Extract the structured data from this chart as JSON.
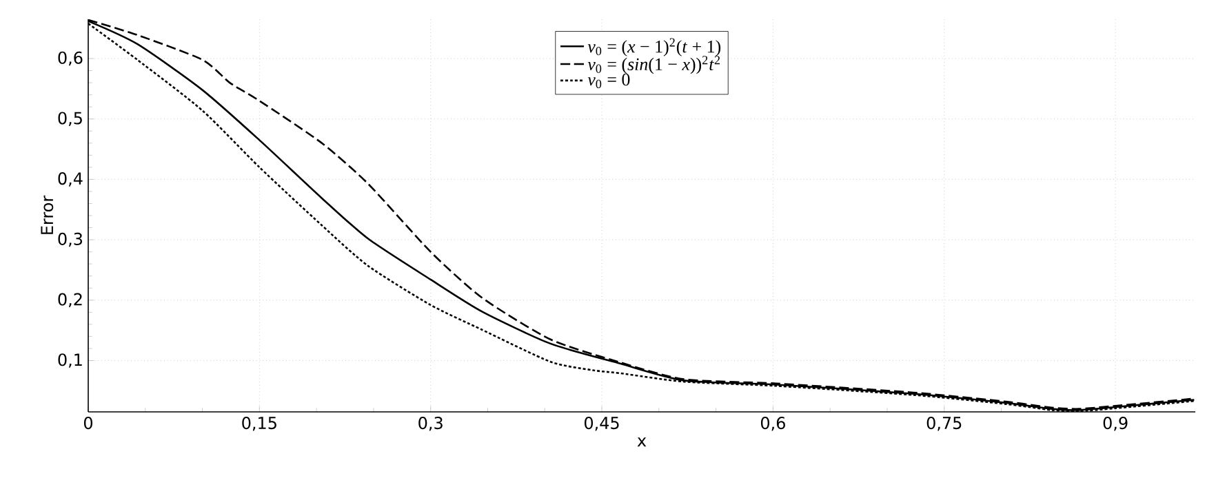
{
  "chart_data": {
    "type": "line",
    "xlabel": "x",
    "ylabel": "Error",
    "xlim": [
      0,
      0.97
    ],
    "ylim": [
      0.015,
      0.665
    ],
    "xticks": [
      0,
      {
        "value": 0.15,
        "label": "0,15"
      },
      {
        "value": 0.3,
        "label": "0,3"
      },
      {
        "value": 0.45,
        "label": "0,45"
      },
      {
        "value": 0.6,
        "label": "0,6"
      },
      {
        "value": 0.75,
        "label": "0,75"
      },
      {
        "value": 0.9,
        "label": "0,9"
      }
    ],
    "yticks": [
      {
        "value": 0.1,
        "label": "0,1"
      },
      {
        "value": 0.2,
        "label": "0,2"
      },
      {
        "value": 0.3,
        "label": "0,3"
      },
      {
        "value": 0.4,
        "label": "0,4"
      },
      {
        "value": 0.5,
        "label": "0,5"
      },
      {
        "value": 0.6,
        "label": "0,6"
      }
    ],
    "grid": true,
    "legend": "top",
    "marker": "none",
    "series": [
      {
        "name": "*v*$_{0}$ = (*x* − 1)$^{2}$(*t* + 1)",
        "color": "#000000",
        "line_style": "solid",
        "x": [
          0,
          0.043,
          0.1,
          0.15,
          0.204,
          0.245,
          0.3,
          0.345,
          0.405,
          0.466,
          0.522,
          0.603,
          0.723,
          0.804,
          0.844,
          0.868,
          0.9,
          0.969
        ],
        "values": [
          0.662,
          0.624,
          0.548,
          0.465,
          0.37,
          0.302,
          0.234,
          0.181,
          0.128,
          0.095,
          0.067,
          0.06,
          0.045,
          0.03,
          0.02,
          0.018,
          0.023,
          0.035
        ]
      },
      {
        "name": "*v*$_{0}$ = (*sin*(1 − *x*))$^{2}$*t*$^{2}$",
        "color": "#000000",
        "line_style": "dashed",
        "x": [
          0,
          0.043,
          0.1,
          0.124,
          0.15,
          0.204,
          0.245,
          0.3,
          0.345,
          0.405,
          0.466,
          0.522,
          0.603,
          0.723,
          0.804,
          0.844,
          0.868,
          0.9,
          0.969
        ],
        "values": [
          0.664,
          0.639,
          0.598,
          0.56,
          0.53,
          0.461,
          0.393,
          0.28,
          0.204,
          0.135,
          0.097,
          0.069,
          0.062,
          0.047,
          0.032,
          0.022,
          0.02,
          0.025,
          0.037
        ]
      },
      {
        "name": "*v*$_{0}$ = 0",
        "color": "#000000",
        "line_style": "dotted",
        "x": [
          0,
          0.043,
          0.1,
          0.15,
          0.204,
          0.245,
          0.3,
          0.345,
          0.405,
          0.442,
          0.466,
          0.522,
          0.603,
          0.723,
          0.804,
          0.844,
          0.868,
          0.9,
          0.969
        ],
        "values": [
          0.658,
          0.598,
          0.514,
          0.42,
          0.325,
          0.257,
          0.192,
          0.151,
          0.098,
          0.084,
          0.079,
          0.065,
          0.058,
          0.043,
          0.028,
          0.018,
          0.016,
          0.021,
          0.033
        ]
      }
    ]
  }
}
